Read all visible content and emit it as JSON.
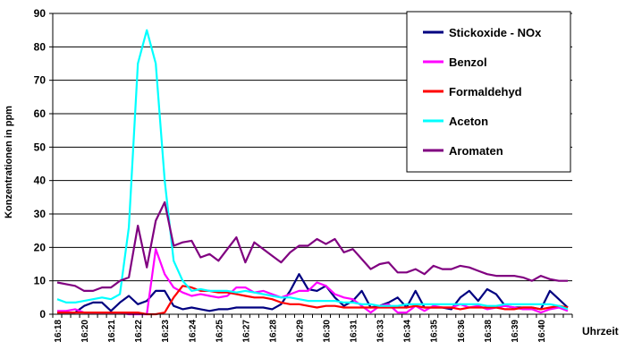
{
  "chart_data": {
    "type": "line",
    "title": "",
    "xlabel": "Uhrzeit",
    "ylabel": "Konzentrationen in ppm",
    "ylim": [
      0,
      90
    ],
    "yticks": [
      0,
      10,
      20,
      30,
      40,
      50,
      60,
      70,
      80,
      90
    ],
    "grid": true,
    "legend": "top-right",
    "x_tick_labels": [
      "16:18",
      "16:20",
      "16:21",
      "16:22",
      "16:23",
      "16:24",
      "16:25",
      "16:27",
      "16:28",
      "16:29",
      "16:30",
      "16:31",
      "16:33",
      "16:34",
      "16:35",
      "16:36",
      "16:38",
      "16:39",
      "16:40"
    ],
    "x_tick_step": 3,
    "series": [
      {
        "name": "Stickoxide - NOx",
        "color": "#000080",
        "values": [
          0.5,
          0.5,
          0.5,
          2.5,
          3.5,
          3.5,
          1,
          3.5,
          5.5,
          3,
          4,
          7,
          7,
          2.5,
          1.5,
          2,
          1.5,
          1,
          1.5,
          1.5,
          2,
          2,
          2,
          2,
          1.5,
          3,
          7,
          12,
          7.5,
          7,
          8.5,
          5,
          2.5,
          4,
          7,
          2,
          2.5,
          3.5,
          5,
          2,
          7,
          2,
          2,
          2,
          1.5,
          5,
          7,
          4,
          7.5,
          6,
          2.5,
          2,
          2,
          2,
          1.5,
          7,
          4.5,
          2
        ]
      },
      {
        "name": "Benzol",
        "color": "#ff00ff",
        "values": [
          1,
          1,
          1.5,
          0.5,
          0.5,
          0.5,
          0.5,
          0.5,
          0,
          0,
          0,
          19.5,
          12,
          8,
          6.5,
          5.5,
          6,
          5.5,
          5,
          5.5,
          8,
          8,
          6.5,
          7,
          6,
          5,
          6,
          7,
          7,
          9.5,
          8.5,
          6,
          5,
          4.5,
          2.5,
          0.5,
          2.5,
          3,
          0.5,
          0.5,
          2.5,
          1,
          2.5,
          2,
          2,
          3,
          2,
          2.5,
          1.5,
          2,
          2.5,
          2,
          1.5,
          1.5,
          0.5,
          1.5,
          2,
          1
        ]
      },
      {
        "name": "Formaldehyd",
        "color": "#ff0000",
        "values": [
          0.5,
          0.5,
          0.5,
          0.5,
          0.5,
          0.5,
          0.5,
          0.5,
          0.5,
          0.5,
          0,
          0,
          0.5,
          5,
          8.5,
          8,
          7,
          7,
          6.5,
          6.5,
          6,
          5.5,
          5,
          5,
          4.5,
          3.5,
          3,
          3,
          2.5,
          2,
          2.5,
          2.5,
          2,
          2,
          2,
          2,
          2,
          2,
          2,
          2,
          2.5,
          2,
          2,
          2,
          2,
          1.5,
          2,
          2,
          2,
          2,
          1.5,
          1.5,
          2,
          2,
          1.5,
          2,
          2.5,
          2
        ]
      },
      {
        "name": "Aceton",
        "color": "#00ffff",
        "values": [
          4.5,
          3.5,
          3.5,
          4,
          4.5,
          5,
          4.5,
          6,
          26,
          75,
          85,
          75,
          40,
          16,
          10,
          7,
          7.5,
          7,
          7,
          7,
          6.5,
          7,
          6.5,
          6,
          5.5,
          5,
          5,
          4.5,
          4,
          4,
          4,
          4,
          3.5,
          3.5,
          3,
          3,
          2.5,
          2.5,
          2.5,
          3,
          3,
          3,
          3,
          3,
          3,
          3,
          3,
          3,
          2.5,
          2.5,
          3,
          3,
          3,
          3,
          3,
          3,
          2.5,
          1.5
        ]
      },
      {
        "name": "Aromaten",
        "color": "#800080",
        "values": [
          9.5,
          9,
          8.5,
          7,
          7,
          8,
          8,
          10,
          11,
          26.5,
          14,
          28,
          33.5,
          20.5,
          21.5,
          22,
          17,
          18,
          16,
          19.5,
          23,
          15.5,
          21.5,
          19.5,
          17.5,
          15.5,
          18.5,
          20.5,
          20.5,
          22.5,
          21,
          22.5,
          18.5,
          19.5,
          16.5,
          13.5,
          15,
          15.5,
          12.5,
          12.5,
          13.5,
          12,
          14.5,
          13.5,
          13.5,
          14.5,
          14,
          13,
          12,
          11.5,
          11.5,
          11.5,
          11,
          10,
          11.5,
          10.5,
          10,
          10
        ]
      }
    ]
  }
}
